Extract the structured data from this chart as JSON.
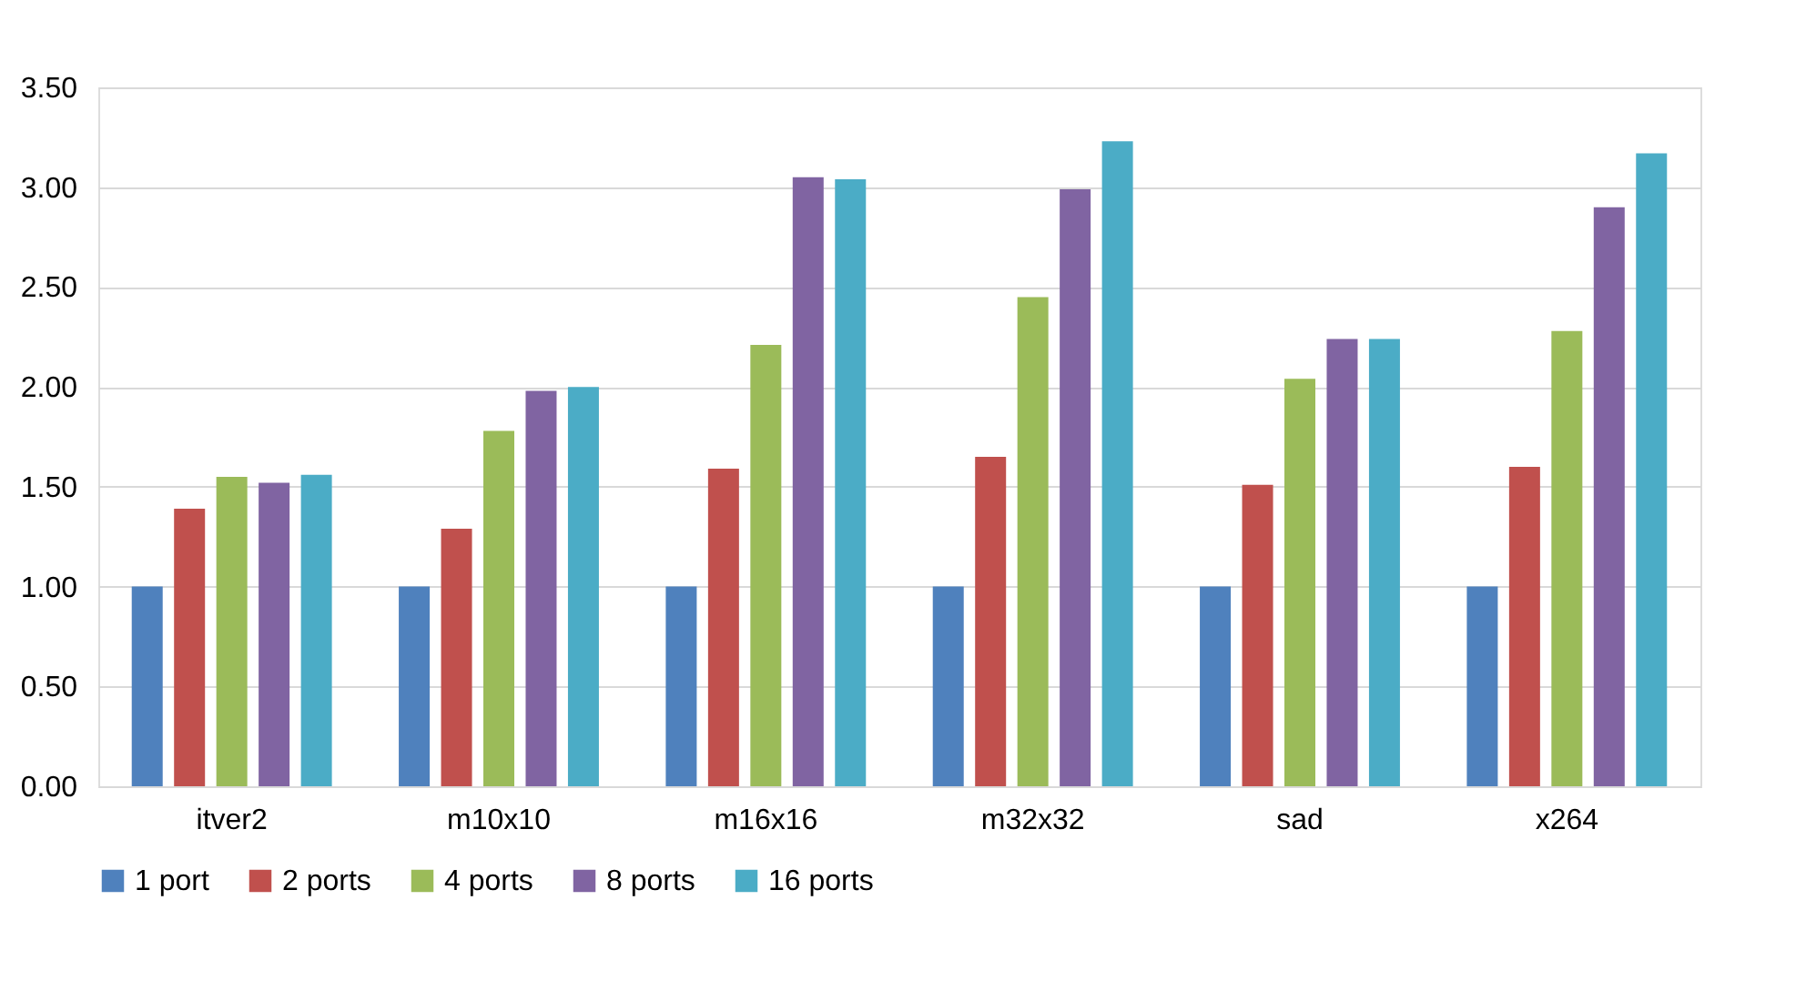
{
  "chart_data": {
    "type": "bar",
    "categories": [
      "itver2",
      "m10x10",
      "m16x16",
      "m32x32",
      "sad",
      "x264"
    ],
    "series": [
      {
        "name": "1 port",
        "color": "#4f81bd",
        "values": [
          1.0,
          1.0,
          1.0,
          1.0,
          1.0,
          1.0
        ]
      },
      {
        "name": "2 ports",
        "color": "#c0504d",
        "values": [
          1.39,
          1.29,
          1.59,
          1.65,
          1.51,
          1.6
        ]
      },
      {
        "name": "4 ports",
        "color": "#9bbb59",
        "values": [
          1.55,
          1.78,
          2.21,
          2.45,
          2.04,
          2.28
        ]
      },
      {
        "name": "8 ports",
        "color": "#8064a2",
        "values": [
          1.52,
          1.98,
          3.05,
          2.99,
          2.24,
          2.9
        ]
      },
      {
        "name": "16 ports",
        "color": "#4bacc6",
        "values": [
          1.56,
          2.0,
          3.04,
          3.23,
          2.24,
          3.17
        ]
      }
    ],
    "ylim": [
      0,
      3.5
    ],
    "yticks": [
      {
        "value": 0,
        "label": "0.00"
      },
      {
        "value": 0.5,
        "label": "0.50"
      },
      {
        "value": 1,
        "label": "1.00"
      },
      {
        "value": 1.5,
        "label": "1.50"
      },
      {
        "value": 2,
        "label": "2.00"
      },
      {
        "value": 2.5,
        "label": "2.50"
      },
      {
        "value": 3,
        "label": "3.00"
      },
      {
        "value": 3.5,
        "label": "3.50"
      }
    ],
    "grid": "y",
    "legend": "bottom"
  }
}
